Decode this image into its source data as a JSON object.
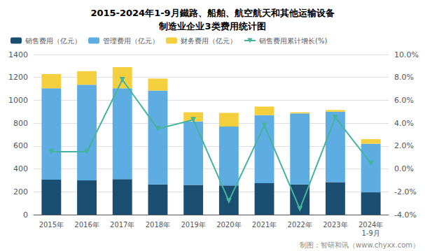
{
  "chart_data": {
    "type": "bar",
    "title": "2015-2024年1-9月鐵路、船舶、航空航天和其他运输设备\n制造业企业3类费用统计图",
    "categories": [
      "2015年",
      "2016年",
      "2017年",
      "2018年",
      "2019年",
      "2020年",
      "2021年",
      "2022年",
      "2023年",
      "2024年\n1-9月"
    ],
    "stacked": true,
    "grid": true,
    "legend": "upper left",
    "series": [
      {
        "name": "销售费用（亿元）",
        "type": "bar",
        "color": "#1b4f72",
        "values": [
          305,
          300,
          310,
          265,
          260,
          255,
          275,
          265,
          285,
          195
        ]
      },
      {
        "name": "管理费用（亿元）",
        "type": "bar",
        "color": "#5dade2",
        "values": [
          800,
          835,
          795,
          820,
          555,
          515,
          595,
          620,
          615,
          425
        ]
      },
      {
        "name": "财务费用（亿元）",
        "type": "bar",
        "color": "#f4d03f",
        "values": [
          125,
          120,
          185,
          105,
          80,
          120,
          75,
          10,
          15,
          40
        ]
      },
      {
        "name": "销售费用累计增长(%)",
        "type": "line",
        "axis": "y2",
        "color": "#45b39d",
        "marker": "triangle-down",
        "values": [
          1.5,
          1.5,
          7.8,
          3.5,
          4.3,
          -2.8,
          3.8,
          -3.5,
          4.5,
          0.5
        ]
      }
    ],
    "ylim": [
      0,
      1400
    ],
    "yticks": [
      0,
      200,
      400,
      600,
      800,
      1000,
      1200,
      1400
    ],
    "y2lim": [
      -4.0,
      10.0
    ],
    "y2ticks": [
      {
        "value": -4.0,
        "label": "-4.0%"
      },
      {
        "value": -2.0,
        "label": "-2.0%"
      },
      {
        "value": 0.0,
        "label": "0.0%"
      },
      {
        "value": 2.0,
        "label": "2.0%"
      },
      {
        "value": 4.0,
        "label": "4.0%"
      },
      {
        "value": 6.0,
        "label": "6.0%"
      },
      {
        "value": 8.0,
        "label": "8.0%"
      },
      {
        "value": 10.0,
        "label": "10.0%"
      }
    ],
    "annotations": [
      {
        "text": "制图：智研和讯（www.chyxx.com）"
      }
    ]
  }
}
